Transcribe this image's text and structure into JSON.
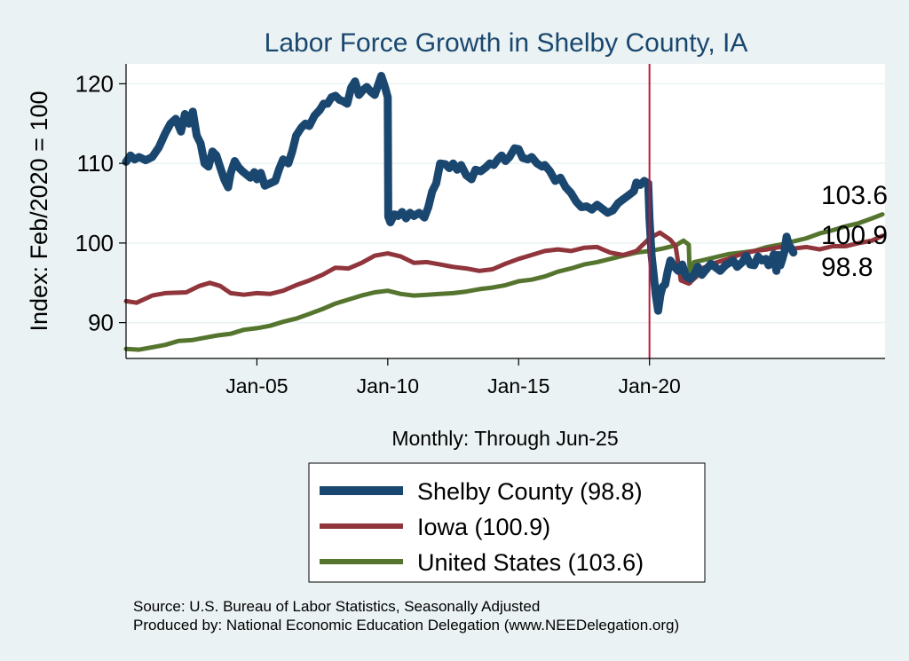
{
  "chart_data": {
    "type": "line",
    "title": "Labor Force Growth in Shelby  County, IA",
    "xlabel": "Monthly: Through Jun-25",
    "ylabel": "Index: Feb/2020 = 100",
    "xlim": [
      2000.0,
      2029.0
    ],
    "ylim": [
      85.5,
      122.5
    ],
    "yticks": [
      90,
      100,
      110,
      120
    ],
    "xticks": [
      {
        "label": "Jan-05",
        "value": 2005.0
      },
      {
        "label": "Jan-10",
        "value": 2010.0
      },
      {
        "label": "Jan-15",
        "value": 2015.0
      },
      {
        "label": "Jan-20",
        "value": 2020.0
      }
    ],
    "vline": {
      "x": 2020.0,
      "color": "#c0193a"
    },
    "grid": true,
    "end_labels": [
      {
        "series": "United States",
        "text": "103.6"
      },
      {
        "series": "Iowa",
        "text": "100.9"
      },
      {
        "series": "Shelby  County",
        "text": "98.8"
      }
    ],
    "series": [
      {
        "name": "Shelby  County",
        "legend": "Shelby  County (98.8)",
        "color": "#1a476f",
        "width": 9,
        "points": [
          [
            2000.0,
            110.2
          ],
          [
            2000.17,
            111.0
          ],
          [
            2000.33,
            110.5
          ],
          [
            2000.5,
            110.8
          ],
          [
            2000.75,
            110.4
          ],
          [
            2001.0,
            110.8
          ],
          [
            2001.25,
            112.0
          ],
          [
            2001.5,
            113.8
          ],
          [
            2001.7,
            115.0
          ],
          [
            2001.9,
            115.6
          ],
          [
            2002.1,
            114.0
          ],
          [
            2002.25,
            116.2
          ],
          [
            2002.4,
            115.0
          ],
          [
            2002.55,
            116.5
          ],
          [
            2002.7,
            113.5
          ],
          [
            2002.85,
            112.5
          ],
          [
            2003.0,
            110.0
          ],
          [
            2003.15,
            109.6
          ],
          [
            2003.3,
            111.5
          ],
          [
            2003.45,
            111.0
          ],
          [
            2003.6,
            109.5
          ],
          [
            2003.75,
            108.0
          ],
          [
            2003.9,
            107.0
          ],
          [
            2004.0,
            108.8
          ],
          [
            2004.15,
            110.3
          ],
          [
            2004.3,
            109.5
          ],
          [
            2004.45,
            109.0
          ],
          [
            2004.6,
            108.6
          ],
          [
            2004.75,
            108.2
          ],
          [
            2004.9,
            108.9
          ],
          [
            2005.0,
            108.0
          ],
          [
            2005.15,
            108.8
          ],
          [
            2005.3,
            107.2
          ],
          [
            2005.5,
            107.5
          ],
          [
            2005.7,
            107.8
          ],
          [
            2005.85,
            109.3
          ],
          [
            2006.0,
            110.5
          ],
          [
            2006.2,
            110.0
          ],
          [
            2006.35,
            111.5
          ],
          [
            2006.5,
            113.5
          ],
          [
            2006.7,
            114.5
          ],
          [
            2006.85,
            115.0
          ],
          [
            2007.0,
            114.7
          ],
          [
            2007.2,
            116.0
          ],
          [
            2007.4,
            116.7
          ],
          [
            2007.55,
            117.5
          ],
          [
            2007.7,
            117.5
          ],
          [
            2007.85,
            118.3
          ],
          [
            2008.0,
            118.5
          ],
          [
            2008.15,
            118.0
          ],
          [
            2008.3,
            117.8
          ],
          [
            2008.45,
            117.5
          ],
          [
            2008.6,
            119.5
          ],
          [
            2008.75,
            120.3
          ],
          [
            2008.9,
            118.6
          ],
          [
            2009.05,
            119.2
          ],
          [
            2009.2,
            119.6
          ],
          [
            2009.35,
            119.0
          ],
          [
            2009.5,
            118.6
          ],
          [
            2009.65,
            120.0
          ],
          [
            2009.75,
            121.0
          ],
          [
            2009.9,
            119.5
          ],
          [
            2010.0,
            118.3
          ],
          [
            2010.02,
            103.3
          ],
          [
            2010.1,
            102.6
          ],
          [
            2010.25,
            103.6
          ],
          [
            2010.4,
            103.4
          ],
          [
            2010.55,
            103.9
          ],
          [
            2010.7,
            103.1
          ],
          [
            2010.85,
            103.8
          ],
          [
            2011.0,
            103.4
          ],
          [
            2011.2,
            103.8
          ],
          [
            2011.4,
            103.2
          ],
          [
            2011.55,
            104.5
          ],
          [
            2011.7,
            106.5
          ],
          [
            2011.85,
            107.5
          ],
          [
            2012.0,
            110.0
          ],
          [
            2012.2,
            109.9
          ],
          [
            2012.35,
            109.4
          ],
          [
            2012.5,
            110.0
          ],
          [
            2012.65,
            109.2
          ],
          [
            2012.8,
            109.8
          ],
          [
            2013.0,
            108.5
          ],
          [
            2013.2,
            108.0
          ],
          [
            2013.35,
            109.2
          ],
          [
            2013.55,
            109.0
          ],
          [
            2013.75,
            109.5
          ],
          [
            2013.9,
            110.0
          ],
          [
            2014.05,
            109.8
          ],
          [
            2014.2,
            110.5
          ],
          [
            2014.35,
            111.0
          ],
          [
            2014.5,
            110.3
          ],
          [
            2014.65,
            110.8
          ],
          [
            2014.85,
            111.9
          ],
          [
            2015.0,
            111.8
          ],
          [
            2015.15,
            110.7
          ],
          [
            2015.35,
            110.5
          ],
          [
            2015.5,
            110.8
          ],
          [
            2015.7,
            110.0
          ],
          [
            2015.9,
            109.6
          ],
          [
            2016.0,
            109.8
          ],
          [
            2016.2,
            109.0
          ],
          [
            2016.4,
            107.8
          ],
          [
            2016.6,
            108.2
          ],
          [
            2016.8,
            107.0
          ],
          [
            2017.0,
            106.3
          ],
          [
            2017.2,
            105.2
          ],
          [
            2017.4,
            104.5
          ],
          [
            2017.6,
            104.6
          ],
          [
            2017.8,
            104.2
          ],
          [
            2018.0,
            104.8
          ],
          [
            2018.2,
            104.3
          ],
          [
            2018.4,
            103.8
          ],
          [
            2018.6,
            104.1
          ],
          [
            2018.8,
            105.0
          ],
          [
            2019.0,
            105.5
          ],
          [
            2019.2,
            106.0
          ],
          [
            2019.4,
            106.5
          ],
          [
            2019.5,
            107.6
          ],
          [
            2019.65,
            107.3
          ],
          [
            2019.8,
            107.8
          ],
          [
            2019.95,
            107.5
          ],
          [
            2020.0,
            103.0
          ],
          [
            2020.08,
            98.5
          ],
          [
            2020.16,
            96.0
          ],
          [
            2020.24,
            93.5
          ],
          [
            2020.33,
            91.5
          ],
          [
            2020.42,
            93.5
          ],
          [
            2020.5,
            94.5
          ],
          [
            2020.6,
            94.8
          ],
          [
            2020.7,
            96.5
          ],
          [
            2020.8,
            97.8
          ],
          [
            2020.95,
            97.0
          ],
          [
            2021.1,
            96.5
          ],
          [
            2021.25,
            97.3
          ],
          [
            2021.4,
            95.8
          ],
          [
            2021.55,
            95.5
          ],
          [
            2021.7,
            96.0
          ],
          [
            2021.85,
            97.0
          ],
          [
            2022.0,
            96.0
          ],
          [
            2022.2,
            96.8
          ],
          [
            2022.35,
            97.4
          ],
          [
            2022.5,
            97.0
          ],
          [
            2022.7,
            96.5
          ],
          [
            2022.9,
            97.2
          ],
          [
            2023.05,
            97.5
          ],
          [
            2023.2,
            97.8
          ],
          [
            2023.35,
            97.0
          ],
          [
            2023.55,
            97.6
          ],
          [
            2023.7,
            98.4
          ],
          [
            2023.85,
            97.3
          ],
          [
            2024.0,
            97.2
          ],
          [
            2024.15,
            98.3
          ],
          [
            2024.3,
            97.8
          ],
          [
            2024.45,
            98.0
          ],
          [
            2024.55,
            97.2
          ],
          [
            2024.65,
            97.6
          ],
          [
            2024.75,
            98.6
          ],
          [
            2024.85,
            96.5
          ],
          [
            2024.92,
            98.5
          ],
          [
            2025.0,
            97.2
          ],
          [
            2025.08,
            98.0
          ],
          [
            2025.16,
            99.0
          ],
          [
            2025.24,
            100.8
          ],
          [
            2025.32,
            99.8
          ],
          [
            2025.4,
            99.4
          ],
          [
            2025.5,
            98.8
          ]
        ]
      },
      {
        "name": "Iowa",
        "legend": "Iowa (100.9)",
        "color": "#90353b",
        "width": 5,
        "points": [
          [
            2000.0,
            92.7
          ],
          [
            2000.4,
            92.5
          ],
          [
            2001.0,
            93.4
          ],
          [
            2001.5,
            93.7
          ],
          [
            2002.3,
            93.8
          ],
          [
            2002.8,
            94.6
          ],
          [
            2003.2,
            95.0
          ],
          [
            2003.6,
            94.6
          ],
          [
            2004.0,
            93.7
          ],
          [
            2004.5,
            93.5
          ],
          [
            2005.0,
            93.7
          ],
          [
            2005.5,
            93.6
          ],
          [
            2006.0,
            94.0
          ],
          [
            2006.5,
            94.7
          ],
          [
            2007.0,
            95.3
          ],
          [
            2007.5,
            96.0
          ],
          [
            2008.0,
            96.9
          ],
          [
            2008.5,
            96.8
          ],
          [
            2009.0,
            97.5
          ],
          [
            2009.5,
            98.4
          ],
          [
            2010.0,
            98.7
          ],
          [
            2010.5,
            98.3
          ],
          [
            2011.0,
            97.5
          ],
          [
            2011.5,
            97.6
          ],
          [
            2012.0,
            97.3
          ],
          [
            2012.5,
            97.0
          ],
          [
            2013.0,
            96.8
          ],
          [
            2013.5,
            96.5
          ],
          [
            2014.0,
            96.7
          ],
          [
            2014.5,
            97.4
          ],
          [
            2015.0,
            98.0
          ],
          [
            2015.5,
            98.5
          ],
          [
            2016.0,
            99.0
          ],
          [
            2016.5,
            99.2
          ],
          [
            2017.0,
            99.0
          ],
          [
            2017.5,
            99.4
          ],
          [
            2018.0,
            99.5
          ],
          [
            2018.5,
            98.8
          ],
          [
            2019.0,
            98.5
          ],
          [
            2019.5,
            99.0
          ],
          [
            2020.0,
            100.6
          ],
          [
            2020.4,
            101.3
          ],
          [
            2020.8,
            100.4
          ],
          [
            2021.0,
            99.6
          ],
          [
            2021.2,
            95.3
          ],
          [
            2021.5,
            94.9
          ],
          [
            2021.8,
            95.8
          ],
          [
            2022.0,
            96.8
          ],
          [
            2022.5,
            97.5
          ],
          [
            2023.0,
            98.0
          ],
          [
            2023.5,
            98.6
          ],
          [
            2024.0,
            99.0
          ],
          [
            2024.5,
            99.2
          ],
          [
            2025.0,
            99.5
          ],
          [
            2025.5,
            99.3
          ],
          [
            2026.0,
            99.5
          ],
          [
            2026.5,
            99.2
          ],
          [
            2027.0,
            99.6
          ],
          [
            2027.5,
            99.6
          ],
          [
            2028.0,
            100.0
          ],
          [
            2028.5,
            100.3
          ],
          [
            2028.9,
            100.9
          ]
        ]
      },
      {
        "name": "United States",
        "legend": "United States (103.6)",
        "color": "#55752f",
        "width": 5,
        "points": [
          [
            2000.0,
            86.7
          ],
          [
            2000.5,
            86.6
          ],
          [
            2001.0,
            86.9
          ],
          [
            2001.5,
            87.2
          ],
          [
            2002.0,
            87.7
          ],
          [
            2002.5,
            87.8
          ],
          [
            2003.0,
            88.1
          ],
          [
            2003.5,
            88.4
          ],
          [
            2004.0,
            88.6
          ],
          [
            2004.5,
            89.1
          ],
          [
            2005.0,
            89.3
          ],
          [
            2005.5,
            89.6
          ],
          [
            2006.0,
            90.1
          ],
          [
            2006.5,
            90.5
          ],
          [
            2007.0,
            91.1
          ],
          [
            2007.5,
            91.7
          ],
          [
            2008.0,
            92.4
          ],
          [
            2008.5,
            92.9
          ],
          [
            2009.0,
            93.4
          ],
          [
            2009.5,
            93.8
          ],
          [
            2010.0,
            94.0
          ],
          [
            2010.5,
            93.6
          ],
          [
            2011.0,
            93.4
          ],
          [
            2011.5,
            93.5
          ],
          [
            2012.0,
            93.6
          ],
          [
            2012.5,
            93.7
          ],
          [
            2013.0,
            93.9
          ],
          [
            2013.5,
            94.2
          ],
          [
            2014.0,
            94.4
          ],
          [
            2014.5,
            94.7
          ],
          [
            2015.0,
            95.2
          ],
          [
            2015.5,
            95.4
          ],
          [
            2016.0,
            95.8
          ],
          [
            2016.5,
            96.4
          ],
          [
            2017.0,
            96.8
          ],
          [
            2017.5,
            97.3
          ],
          [
            2018.0,
            97.6
          ],
          [
            2018.5,
            98.0
          ],
          [
            2019.0,
            98.4
          ],
          [
            2019.5,
            98.8
          ],
          [
            2020.0,
            99.0
          ],
          [
            2020.5,
            99.3
          ],
          [
            2021.0,
            99.7
          ],
          [
            2021.3,
            100.3
          ],
          [
            2021.5,
            99.8
          ],
          [
            2021.55,
            95.0
          ],
          [
            2021.7,
            97.6
          ],
          [
            2022.0,
            97.8
          ],
          [
            2022.5,
            98.2
          ],
          [
            2023.0,
            98.6
          ],
          [
            2023.5,
            98.8
          ],
          [
            2024.0,
            99.0
          ],
          [
            2024.5,
            99.5
          ],
          [
            2025.0,
            99.8
          ],
          [
            2025.5,
            100.2
          ],
          [
            2026.0,
            100.6
          ],
          [
            2026.5,
            101.2
          ],
          [
            2027.0,
            101.6
          ],
          [
            2027.5,
            102.1
          ],
          [
            2028.0,
            102.5
          ],
          [
            2028.5,
            103.1
          ],
          [
            2028.9,
            103.6
          ]
        ]
      }
    ]
  }
}
